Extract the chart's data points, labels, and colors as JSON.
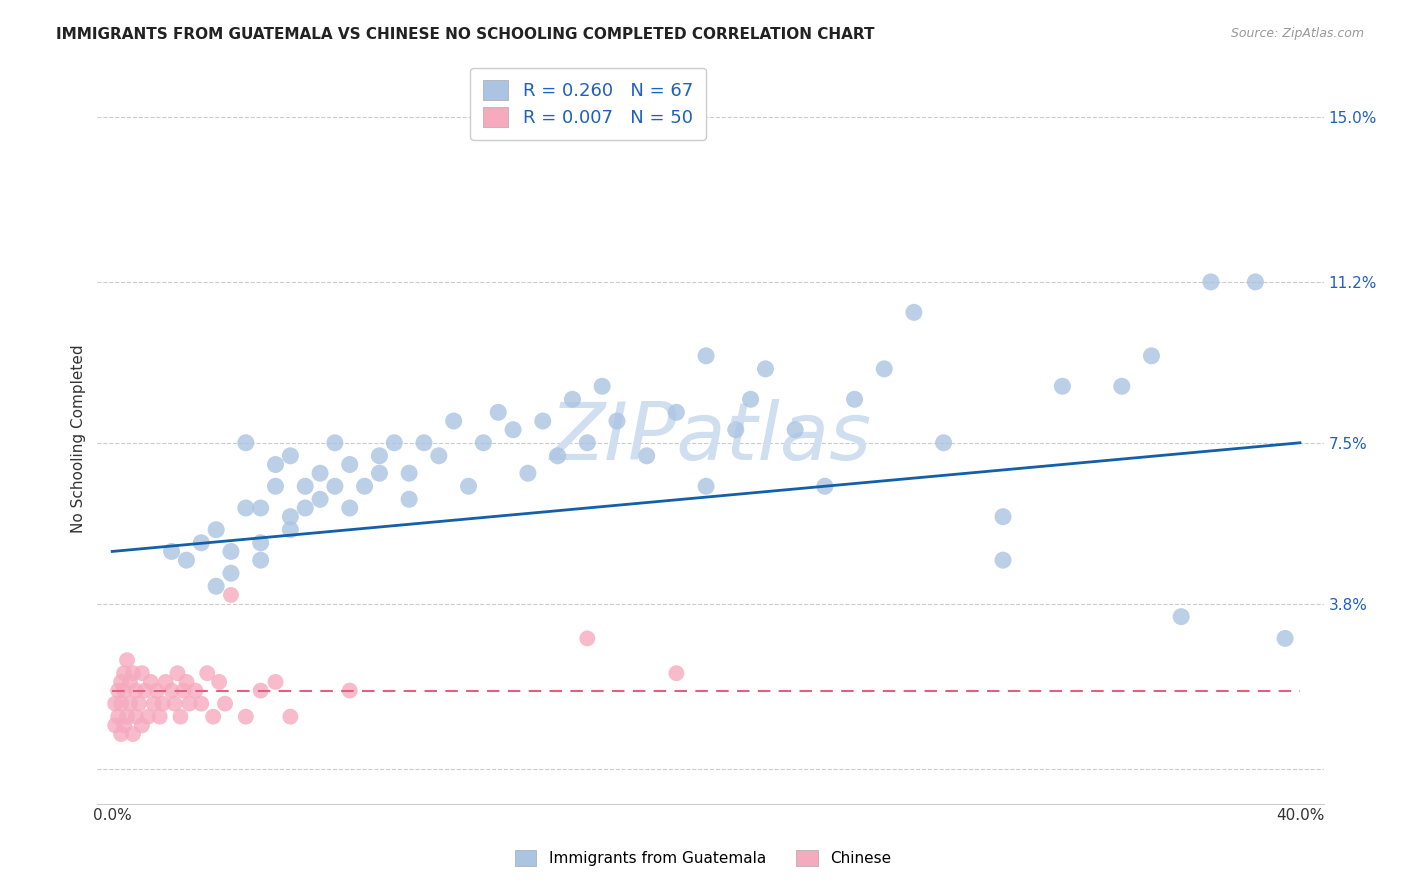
{
  "title": "IMMIGRANTS FROM GUATEMALA VS CHINESE NO SCHOOLING COMPLETED CORRELATION CHART",
  "source": "Source: ZipAtlas.com",
  "ylabel": "No Schooling Completed",
  "xlabel_guatemala": "Immigrants from Guatemala",
  "xlabel_chinese": "Chinese",
  "xlim": [
    -0.005,
    0.408
  ],
  "ylim": [
    -0.008,
    0.16
  ],
  "yticks": [
    0.0,
    0.038,
    0.075,
    0.112,
    0.15
  ],
  "ytick_labels": [
    "",
    "3.8%",
    "7.5%",
    "11.2%",
    "15.0%"
  ],
  "xtick_positions": [
    0.0,
    0.4
  ],
  "xtick_labels": [
    "0.0%",
    "40.0%"
  ],
  "R_guatemala": 0.26,
  "N_guatemala": 67,
  "R_chinese": 0.007,
  "N_chinese": 50,
  "color_guatemala": "#aac4e2",
  "color_chinese": "#f5aabe",
  "line_color_guatemala": "#1460a8",
  "line_color_chinese": "#e06080",
  "legend_text_color": "#2060c0",
  "watermark": "ZIPatlas",
  "watermark_color": "#d0dff0",
  "guatemala_x": [
    0.02,
    0.025,
    0.03,
    0.035,
    0.035,
    0.04,
    0.04,
    0.045,
    0.045,
    0.05,
    0.05,
    0.05,
    0.055,
    0.055,
    0.06,
    0.06,
    0.06,
    0.065,
    0.065,
    0.07,
    0.07,
    0.075,
    0.075,
    0.08,
    0.08,
    0.085,
    0.09,
    0.09,
    0.095,
    0.1,
    0.1,
    0.105,
    0.11,
    0.115,
    0.12,
    0.125,
    0.13,
    0.135,
    0.14,
    0.145,
    0.15,
    0.155,
    0.16,
    0.165,
    0.17,
    0.18,
    0.19,
    0.2,
    0.2,
    0.21,
    0.215,
    0.22,
    0.23,
    0.24,
    0.25,
    0.26,
    0.27,
    0.28,
    0.3,
    0.32,
    0.34,
    0.35,
    0.36,
    0.37,
    0.385,
    0.395,
    0.3
  ],
  "guatemala_y": [
    0.05,
    0.048,
    0.052,
    0.055,
    0.042,
    0.05,
    0.045,
    0.075,
    0.06,
    0.052,
    0.048,
    0.06,
    0.065,
    0.07,
    0.055,
    0.058,
    0.072,
    0.065,
    0.06,
    0.068,
    0.062,
    0.075,
    0.065,
    0.06,
    0.07,
    0.065,
    0.072,
    0.068,
    0.075,
    0.068,
    0.062,
    0.075,
    0.072,
    0.08,
    0.065,
    0.075,
    0.082,
    0.078,
    0.068,
    0.08,
    0.072,
    0.085,
    0.075,
    0.088,
    0.08,
    0.072,
    0.082,
    0.095,
    0.065,
    0.078,
    0.085,
    0.092,
    0.078,
    0.065,
    0.085,
    0.092,
    0.105,
    0.075,
    0.058,
    0.088,
    0.088,
    0.095,
    0.035,
    0.112,
    0.112,
    0.03,
    0.048
  ],
  "chinese_x": [
    0.001,
    0.001,
    0.002,
    0.002,
    0.003,
    0.003,
    0.003,
    0.004,
    0.004,
    0.004,
    0.005,
    0.005,
    0.006,
    0.006,
    0.007,
    0.007,
    0.008,
    0.008,
    0.009,
    0.01,
    0.01,
    0.011,
    0.012,
    0.013,
    0.014,
    0.015,
    0.016,
    0.017,
    0.018,
    0.02,
    0.021,
    0.022,
    0.023,
    0.024,
    0.025,
    0.026,
    0.028,
    0.03,
    0.032,
    0.034,
    0.036,
    0.038,
    0.04,
    0.045,
    0.05,
    0.055,
    0.06,
    0.08,
    0.16,
    0.19
  ],
  "chinese_y": [
    0.01,
    0.015,
    0.012,
    0.018,
    0.008,
    0.02,
    0.015,
    0.01,
    0.018,
    0.022,
    0.012,
    0.025,
    0.015,
    0.02,
    0.008,
    0.022,
    0.012,
    0.018,
    0.015,
    0.01,
    0.022,
    0.018,
    0.012,
    0.02,
    0.015,
    0.018,
    0.012,
    0.015,
    0.02,
    0.018,
    0.015,
    0.022,
    0.012,
    0.018,
    0.02,
    0.015,
    0.018,
    0.015,
    0.022,
    0.012,
    0.02,
    0.015,
    0.04,
    0.012,
    0.018,
    0.02,
    0.012,
    0.018,
    0.03,
    0.022
  ],
  "blue_line_x": [
    0.0,
    0.4
  ],
  "blue_line_y": [
    0.05,
    0.075
  ],
  "pink_line_x": [
    0.0,
    0.4
  ],
  "pink_line_y": [
    0.018,
    0.018
  ]
}
